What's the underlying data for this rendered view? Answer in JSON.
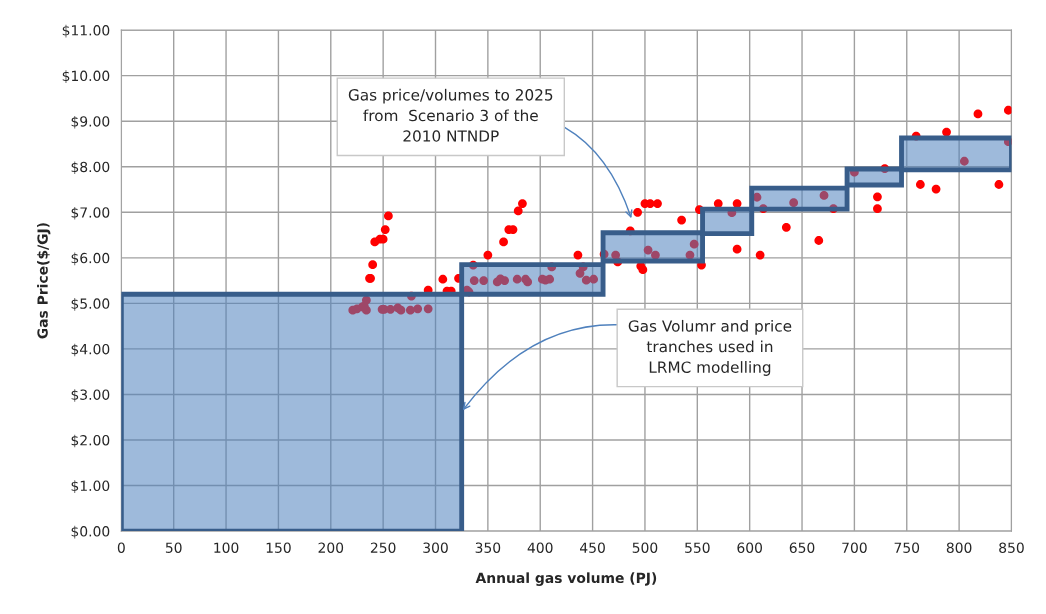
{
  "chart_data": {
    "type": "scatter",
    "xlabel": "Annual gas volume (PJ)",
    "ylabel": "Gas Price($/GJ)",
    "xlim": [
      0,
      850
    ],
    "xticks": [
      0,
      50,
      100,
      150,
      200,
      250,
      300,
      350,
      400,
      450,
      500,
      550,
      600,
      650,
      700,
      750,
      800,
      850
    ],
    "ylim": [
      0,
      11
    ],
    "yticks": [
      {
        "value": 0,
        "label": "$0.00"
      },
      {
        "value": 1,
        "label": "$1.00"
      },
      {
        "value": 2,
        "label": "$2.00"
      },
      {
        "value": 3,
        "label": "$3.00"
      },
      {
        "value": 4,
        "label": "$4.00"
      },
      {
        "value": 5,
        "label": "$5.00"
      },
      {
        "value": 6,
        "label": "$6.00"
      },
      {
        "value": 7,
        "label": "$7.00"
      },
      {
        "value": 8,
        "label": "$8.00"
      },
      {
        "value": 9,
        "label": "$9.00"
      },
      {
        "value": 10,
        "label": "$10.00"
      },
      {
        "value": 11,
        "label": "$11.00"
      }
    ],
    "grid": true,
    "marker": "circle",
    "series": [
      {
        "color": "#ff0000",
        "x": [
          255,
          252,
          242,
          247,
          250,
          240,
          237,
          238,
          293,
          307,
          322,
          311,
          315,
          234,
          221,
          225,
          230,
          232,
          234,
          249,
          251,
          257,
          264,
          267,
          276,
          283,
          293,
          277,
          330,
          336,
          350,
          365,
          370,
          374,
          379,
          383,
          337,
          346,
          359,
          362,
          366,
          378,
          386,
          388,
          402,
          405,
          409,
          411,
          436,
          438,
          441,
          444,
          451,
          332,
          461,
          472,
          474,
          486,
          493,
          500,
          505,
          512,
          496,
          498,
          503,
          510,
          535,
          543,
          547,
          552,
          554,
          570,
          588,
          583,
          588,
          610,
          607,
          613,
          635,
          642,
          666,
          671,
          680,
          700,
          722,
          722,
          729,
          759,
          763,
          778,
          788,
          805,
          818,
          838,
          847,
          847
        ],
        "values": [
          6.92,
          6.62,
          6.35,
          6.41,
          6.41,
          5.85,
          5.55,
          5.55,
          5.29,
          5.53,
          5.55,
          5.27,
          5.27,
          5.07,
          4.85,
          4.88,
          4.92,
          4.94,
          4.85,
          4.87,
          4.87,
          4.87,
          4.9,
          4.85,
          4.85,
          4.88,
          4.88,
          5.16,
          5.29,
          5.84,
          6.06,
          6.35,
          6.62,
          6.62,
          7.03,
          7.19,
          5.5,
          5.5,
          5.47,
          5.54,
          5.5,
          5.53,
          5.53,
          5.47,
          5.53,
          5.51,
          5.53,
          5.8,
          6.06,
          5.66,
          5.8,
          5.51,
          5.53,
          5.25,
          6.08,
          6.06,
          5.91,
          6.59,
          7.0,
          7.19,
          7.19,
          7.19,
          5.82,
          5.74,
          6.17,
          6.06,
          6.83,
          6.06,
          6.3,
          7.06,
          5.84,
          7.19,
          7.19,
          6.99,
          6.19,
          6.06,
          7.33,
          7.08,
          6.67,
          7.21,
          6.38,
          7.37,
          7.08,
          7.88,
          7.34,
          7.08,
          7.96,
          8.67,
          7.61,
          7.51,
          8.76,
          8.12,
          9.16,
          7.61,
          9.24,
          8.55
        ]
      },
      {
        "type": "histogram",
        "color": "#4f81bd",
        "bins": [
          0,
          325,
          460,
          555,
          602,
          693,
          745,
          850
        ],
        "base": [
          0,
          5.2,
          5.93,
          6.53,
          7.07,
          7.6,
          7.93
        ],
        "values": [
          5.2,
          0.65,
          0.62,
          0.54,
          0.46,
          0.35,
          0.7
        ]
      }
    ],
    "annotations": [
      {
        "text": "Gas price/volumes to 2025\nfrom  Scenario 3 of the\n2010 NTNDP",
        "x": 487,
        "y": 6.87
      },
      {
        "text": "Gas Volumr and price\ntranches used in\nLRMC modelling",
        "x": 326,
        "y": 2.65
      }
    ]
  }
}
